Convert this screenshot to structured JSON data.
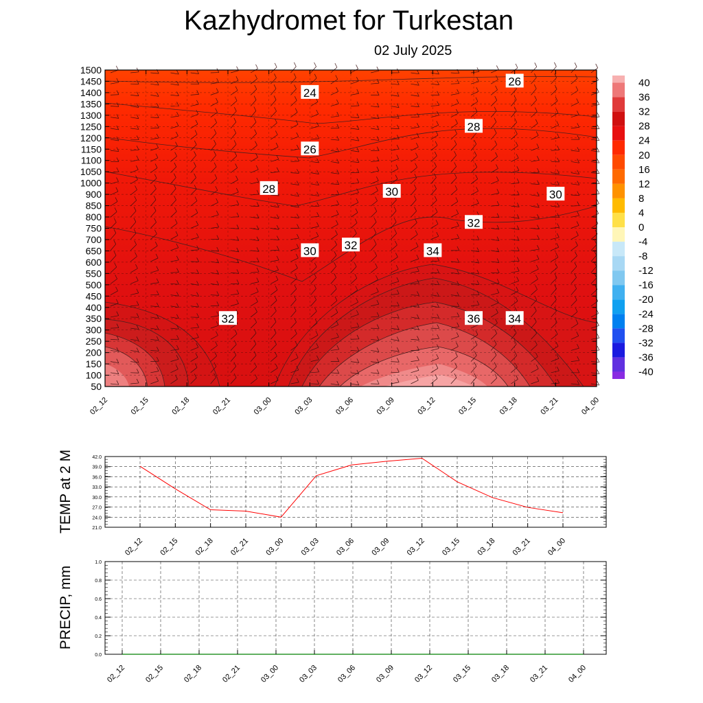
{
  "title": "Kazhydromet  for Turkestan",
  "subtitle": "02 July 2025",
  "chart_data": [
    {
      "type": "heatmap",
      "description_kind": "time-height cross-section of temperature with wind barbs",
      "y_ticks": [
        "1500",
        "1450",
        "1400",
        "1350",
        "1300",
        "1250",
        "1200",
        "1150",
        "1100",
        "1050",
        "1000",
        "900",
        "850",
        "800",
        "750",
        "700",
        "650",
        "600",
        "550",
        "500",
        "450",
        "400",
        "350",
        "300",
        "250",
        "200",
        "150",
        "100",
        "50"
      ],
      "x_ticks": [
        "02_12",
        "02_15",
        "02_18",
        "02_21",
        "03_00",
        "03_03",
        "03_06",
        "03_09",
        "03_12",
        "03_15",
        "03_18",
        "03_21",
        "04_00"
      ],
      "colorbar_ticks": [
        "40",
        "36",
        "32",
        "28",
        "24",
        "20",
        "16",
        "12",
        "8",
        "4",
        "0",
        "-4",
        "-8",
        "-12",
        "-16",
        "-20",
        "-24",
        "-28",
        "-32",
        "-36",
        "-40"
      ],
      "contour_labels": [
        {
          "text": "24",
          "time": "03_03",
          "level": "1400"
        },
        {
          "text": "26",
          "time": "03_18",
          "level": "1450"
        },
        {
          "text": "28",
          "time": "03_15",
          "level": "1250"
        },
        {
          "text": "26",
          "time": "03_03",
          "level": "1150"
        },
        {
          "text": "28",
          "time": "03_00",
          "level": "950"
        },
        {
          "text": "30",
          "time": "03_09",
          "level": "925"
        },
        {
          "text": "30",
          "time": "03_21",
          "level": "900"
        },
        {
          "text": "32",
          "time": "03_15",
          "level": "775"
        },
        {
          "text": "32",
          "time": "03_06",
          "level": "675"
        },
        {
          "text": "34",
          "time": "03_12",
          "level": "650"
        },
        {
          "text": "30",
          "time": "03_03",
          "level": "650"
        },
        {
          "text": "32",
          "time": "02_21",
          "level": "350"
        },
        {
          "text": "36",
          "time": "03_15",
          "level": "350"
        },
        {
          "text": "34",
          "time": "03_18",
          "level": "350"
        }
      ]
    },
    {
      "type": "line",
      "ylabel": "TEMP at 2 M",
      "y_ticks": [
        "42.0",
        "39.0",
        "36.0",
        "33.0",
        "30.0",
        "27.0",
        "24.0",
        "21.0"
      ],
      "ylim": [
        21.0,
        42.0
      ],
      "categories": [
        "02_12",
        "02_15",
        "02_18",
        "02_21",
        "03_00",
        "03_03",
        "03_06",
        "03_09",
        "03_12",
        "03_15",
        "03_18",
        "03_21",
        "04_00"
      ],
      "values": [
        39.1,
        32.4,
        26.2,
        25.8,
        24.0,
        36.3,
        39.5,
        40.6,
        41.5,
        34.5,
        29.8,
        26.9,
        25.3
      ],
      "line_color": "#ff0000"
    },
    {
      "type": "line",
      "ylabel": "PRECIP, mm",
      "y_ticks": [
        "1.0",
        "0.8",
        "0.6",
        "0.4",
        "0.2",
        "0.0"
      ],
      "ylim": [
        0.0,
        1.0
      ],
      "categories": [
        "02_12",
        "02_15",
        "02_18",
        "02_21",
        "03_00",
        "03_03",
        "03_06",
        "03_09",
        "03_12",
        "03_15",
        "03_18",
        "03_21",
        "04_00"
      ],
      "values": [
        0,
        0,
        0,
        0,
        0,
        0,
        0,
        0,
        0,
        0,
        0,
        0,
        0
      ],
      "line_color": "#008000"
    }
  ],
  "colors": {
    "field_base": "#e81010",
    "field_top": "#ff3a00",
    "field_warm": "#c81414",
    "field_core": "#f28c8c"
  }
}
